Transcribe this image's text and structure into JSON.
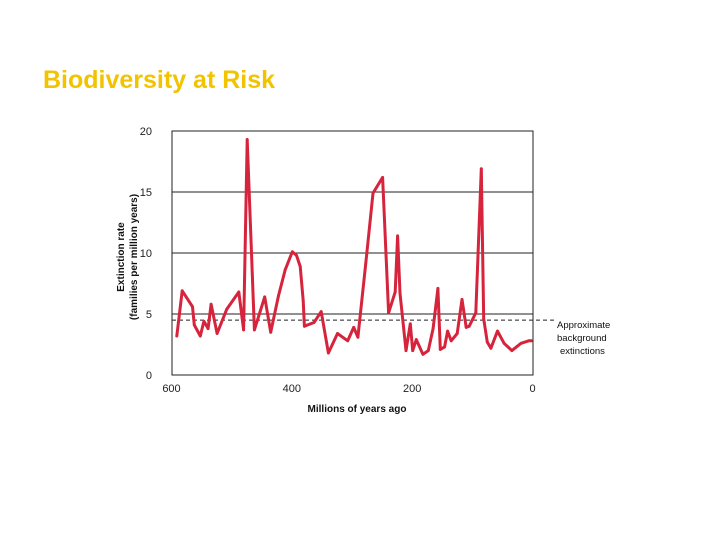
{
  "slide": {
    "title": "Biodiversity at Risk"
  },
  "colors": {
    "title": "#f2c400",
    "series": "#d6243c",
    "gridline": "#222222",
    "dashed": "#222222"
  },
  "chart_data": {
    "type": "line",
    "title": "",
    "xlabel": "Millions of years ago",
    "ylabel_line1": "Extinction rate",
    "ylabel_line2": "(families per million years)",
    "xlim": [
      600,
      0
    ],
    "ylim": [
      0,
      20
    ],
    "x_ticks": [
      600,
      400,
      200,
      0
    ],
    "y_ticks": [
      0,
      5,
      10,
      15,
      20
    ],
    "grid": "horizontal lines at 5, 10, 15",
    "reference_line": {
      "value": 4.5,
      "label_lines": [
        "Approximate",
        "background",
        "extinctions"
      ]
    },
    "series": [
      {
        "name": "Extinction rate",
        "x": [
          592,
          583,
          566,
          563,
          553,
          547,
          540,
          535,
          525,
          509,
          489,
          481,
          475,
          463,
          446,
          436,
          423,
          412,
          400,
          393,
          387,
          382,
          380,
          364,
          352,
          340,
          325,
          308,
          298,
          291,
          278,
          266,
          250,
          240,
          229,
          225,
          221,
          211,
          204,
          200,
          194,
          183,
          174,
          166,
          158,
          154,
          147,
          142,
          136,
          126,
          118,
          111,
          106,
          95,
          86,
          82,
          76,
          70,
          59,
          48,
          35,
          20,
          7,
          3
        ],
        "y": [
          3.2,
          6.9,
          5.6,
          4.1,
          3.2,
          4.4,
          3.8,
          5.8,
          3.4,
          5.4,
          6.8,
          3.7,
          19.3,
          3.7,
          6.4,
          3.5,
          6.5,
          8.6,
          10.1,
          9.8,
          8.9,
          6.1,
          4.0,
          4.3,
          5.2,
          1.8,
          3.4,
          2.8,
          3.9,
          3.1,
          9.1,
          14.9,
          16.2,
          5.1,
          6.8,
          11.4,
          6.7,
          2.0,
          4.2,
          2.0,
          2.9,
          1.7,
          2.0,
          3.8,
          7.1,
          2.1,
          2.3,
          3.6,
          2.8,
          3.4,
          6.2,
          3.9,
          4.0,
          5.1,
          16.9,
          4.6,
          2.7,
          2.2,
          3.6,
          2.6,
          2.0,
          2.6,
          2.8,
          2.8
        ]
      }
    ]
  }
}
